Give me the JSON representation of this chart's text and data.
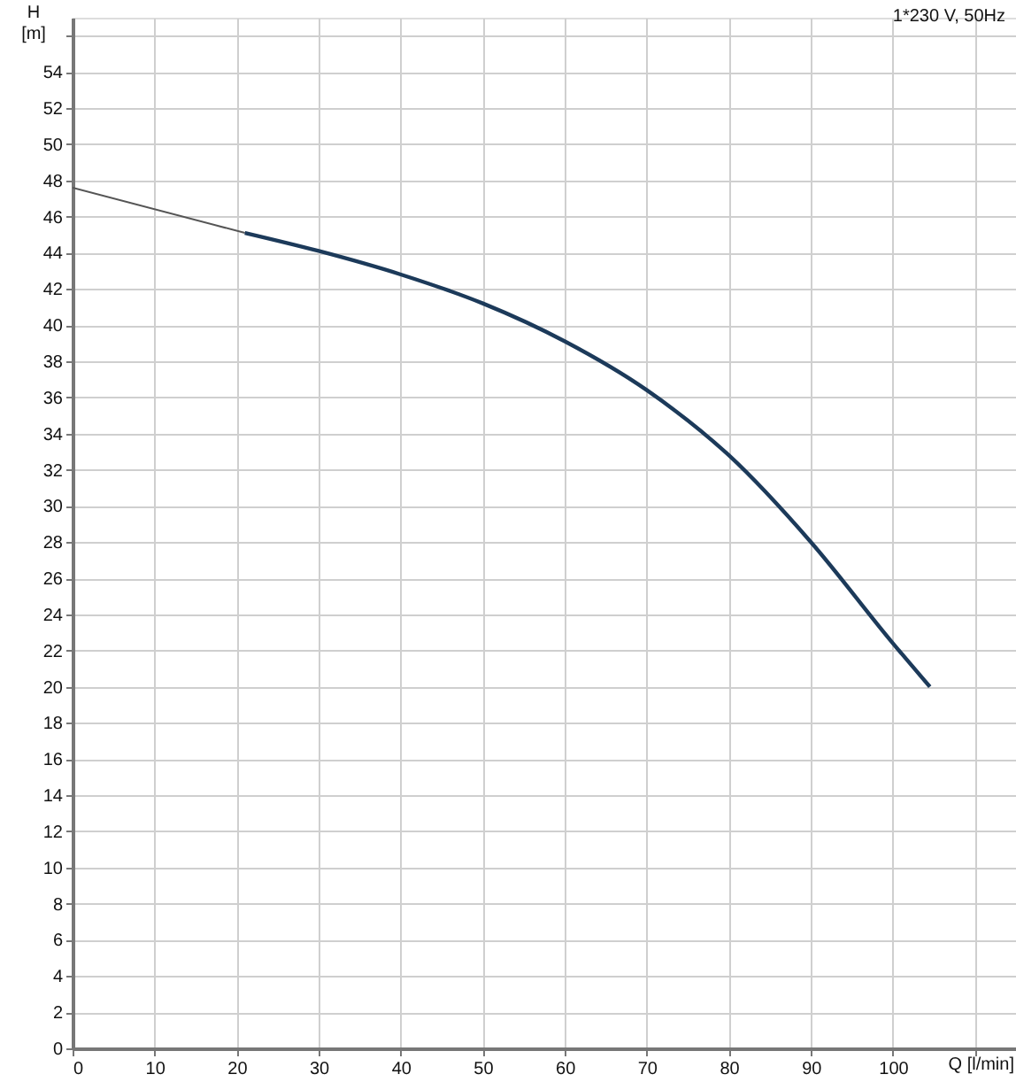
{
  "chart_data": {
    "type": "line",
    "xlabel": "Q [l/min]",
    "ylabel": "H [m]",
    "annotations": [
      "1*230 V, 50Hz"
    ],
    "series": [
      {
        "color": "#555555",
        "x": [
          0,
          21
        ],
        "values": [
          47.6,
          45.1
        ]
      },
      {
        "color": "#1c3a5a",
        "x": [
          21,
          30,
          40,
          50,
          60,
          70,
          80,
          90,
          100,
          104.5
        ],
        "values": [
          45.1,
          44.1,
          42.8,
          41.2,
          39.1,
          36.4,
          32.8,
          28.0,
          22.4,
          20.0
        ]
      }
    ],
    "xlim": [
      0,
      115
    ],
    "ylim": [
      0,
      57
    ],
    "xticks": [
      0,
      10,
      20,
      30,
      40,
      50,
      60,
      70,
      80,
      90,
      100,
      {
        "value": 110,
        "label": null
      }
    ],
    "yticks": [
      0,
      2,
      4,
      6,
      8,
      10,
      12,
      14,
      16,
      18,
      20,
      22,
      24,
      26,
      28,
      30,
      32,
      34,
      36,
      38,
      40,
      42,
      44,
      46,
      48,
      50,
      52,
      54,
      {
        "value": 56,
        "label": null
      }
    ],
    "grid": true,
    "marker": "none",
    "line_style": "solid"
  }
}
